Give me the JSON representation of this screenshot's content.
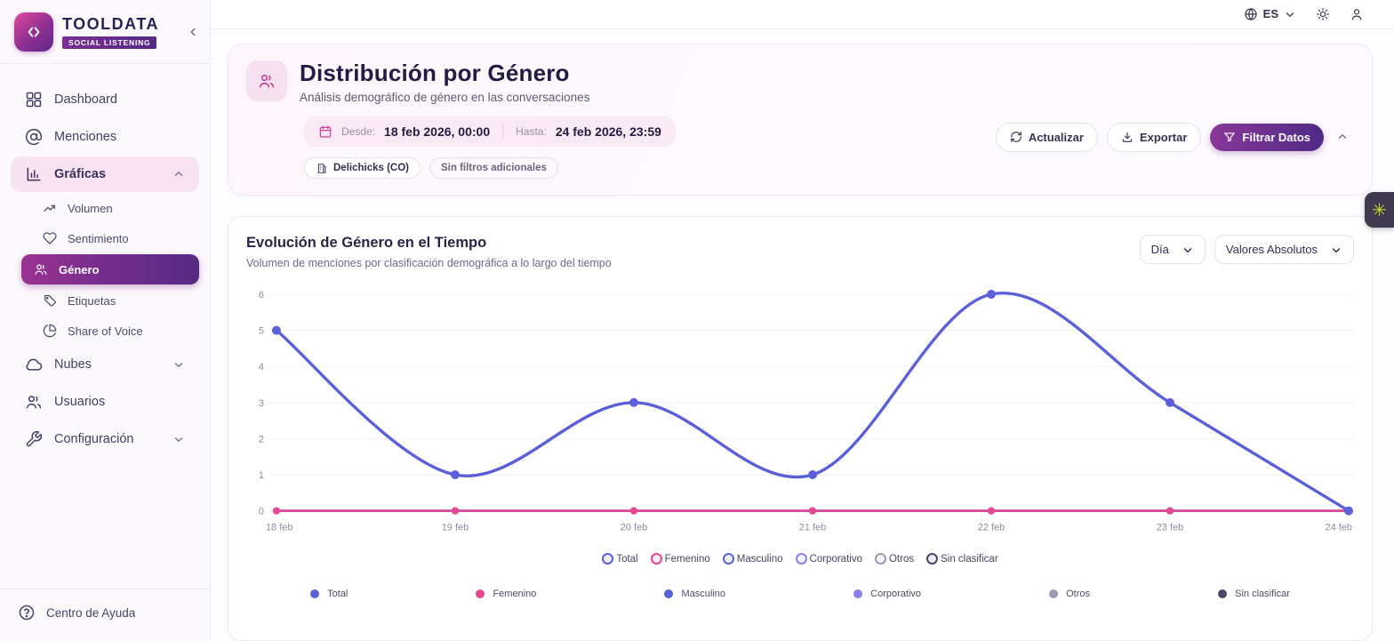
{
  "brand": {
    "name": "TOOLDATA",
    "tagline": "SOCIAL LISTENING"
  },
  "topbar": {
    "language": "ES"
  },
  "sidebar": {
    "dashboard": "Dashboard",
    "menciones": "Menciones",
    "graficas": "Gráficas",
    "volumen": "Volumen",
    "sentimiento": "Sentimiento",
    "genero": "Género",
    "etiquetas": "Etiquetas",
    "share_of_voice": "Share of Voice",
    "nubes": "Nubes",
    "usuarios": "Usuarios",
    "configuracion": "Configuración",
    "help": "Centro de Ayuda"
  },
  "header": {
    "title": "Distribución por Género",
    "subtitle": "Análisis demográfico de género en las conversaciones",
    "date_from_label": "Desde:",
    "date_from": "18 feb 2026, 00:00",
    "date_to_label": "Hasta:",
    "date_to": "24 feb 2026, 23:59",
    "scope_badge": "Delichicks (CO)",
    "filters_badge": "Sin filtros adicionales",
    "refresh_label": "Actualizar",
    "export_label": "Exportar",
    "filter_label": "Filtrar Datos"
  },
  "chart": {
    "title": "Evolución de Género en el Tiempo",
    "subtitle": "Volumen de menciones por clasificación demográfica a lo largo del tiempo",
    "granularity": "Día",
    "mode": "Valores Absolutos"
  },
  "chart_data": {
    "type": "line",
    "title": "Evolución de Género en el Tiempo",
    "x": [
      "18 feb",
      "19 feb",
      "20 feb",
      "21 feb",
      "22 feb",
      "23 feb",
      "24 feb"
    ],
    "series": [
      {
        "name": "Total",
        "color": "#5b5fd9",
        "values": [
          5,
          1,
          3,
          1,
          6,
          3,
          0
        ]
      },
      {
        "name": "Femenino",
        "color": "#e8478f",
        "values": [
          0,
          0,
          0,
          0,
          0,
          0,
          0
        ]
      },
      {
        "name": "Masculino",
        "color": "#5663d6",
        "values": [
          0,
          0,
          0,
          0,
          0,
          0,
          0
        ]
      },
      {
        "name": "Corporativo",
        "color": "#8b82ee",
        "values": [
          0,
          0,
          0,
          0,
          0,
          0,
          0
        ]
      },
      {
        "name": "Otros",
        "color": "#9e9ab0",
        "values": [
          0,
          0,
          0,
          0,
          0,
          0,
          0
        ]
      },
      {
        "name": "Sin clasificar",
        "color": "#4e4868",
        "values": [
          0,
          0,
          0,
          0,
          0,
          0,
          0
        ]
      }
    ],
    "ylim": [
      0,
      6
    ],
    "yticks": [
      0,
      1,
      2,
      3,
      4,
      5,
      6
    ],
    "grid": true,
    "legend_position": "bottom"
  },
  "colors": {
    "accent": "#6d2f8e",
    "active_gradient_start": "#9b3291",
    "active_gradient_end": "#572a83"
  }
}
